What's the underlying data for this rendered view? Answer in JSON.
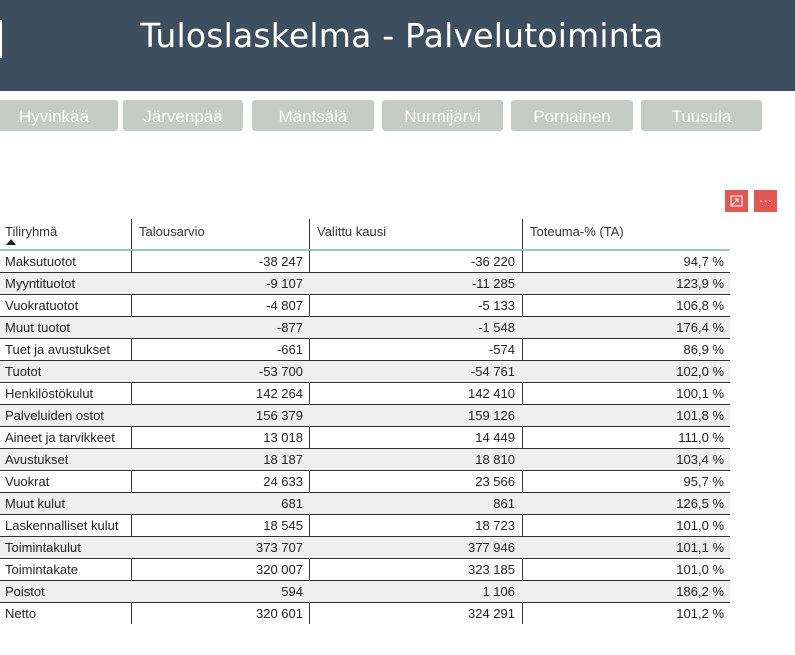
{
  "header": {
    "title": "Tuloslaskelma - Palvelutoiminta"
  },
  "filters": [
    {
      "label": "Hyvinkää"
    },
    {
      "label": "Järvenpää"
    },
    {
      "label": "Mäntsälä"
    },
    {
      "label": "Nurmijärvi"
    },
    {
      "label": "Pornainen"
    },
    {
      "label": "Tuusula"
    }
  ],
  "visual_actions": {
    "focus_icon": "focus-mode-icon",
    "more_icon": "more-options-icon",
    "more_label": "···"
  },
  "table": {
    "columns": [
      "Tiliryhmä",
      "Talousarvio",
      "Valittu kausi",
      "Toteuma-% (TA)"
    ],
    "sort_column": "Tiliryhmä",
    "rows": [
      {
        "name": "Maksutuotot",
        "budget": "-38 247",
        "period": "-36 220",
        "pct": "94,7 %"
      },
      {
        "name": "Myyntituotot",
        "budget": "-9 107",
        "period": "-11 285",
        "pct": "123,9 %"
      },
      {
        "name": "Vuokratuotot",
        "budget": "-4 807",
        "period": "-5 133",
        "pct": "106,8 %"
      },
      {
        "name": "Muut tuotot",
        "budget": "-877",
        "period": "-1 548",
        "pct": "176,4 %"
      },
      {
        "name": "Tuet ja avustukset",
        "budget": "-661",
        "period": "-574",
        "pct": "86,9 %"
      },
      {
        "name": "Tuotot",
        "budget": "-53 700",
        "period": "-54 761",
        "pct": "102,0 %"
      },
      {
        "name": "Henkilöstökulut",
        "budget": "142 264",
        "period": "142 410",
        "pct": "100,1 %"
      },
      {
        "name": "Palveluiden ostot",
        "budget": "156 379",
        "period": "159 126",
        "pct": "101,8 %"
      },
      {
        "name": "Aineet ja tarvikkeet",
        "budget": "13 018",
        "period": "14 449",
        "pct": "111,0 %"
      },
      {
        "name": "Avustukset",
        "budget": "18 187",
        "period": "18 810",
        "pct": "103,4 %"
      },
      {
        "name": "Vuokrat",
        "budget": "24 633",
        "period": "23 566",
        "pct": "95,7 %"
      },
      {
        "name": "Muut kulut",
        "budget": "681",
        "period": "861",
        "pct": "126,5 %"
      },
      {
        "name": "Laskennalliset kulut",
        "budget": "18 545",
        "period": "18 723",
        "pct": "101,0 %"
      },
      {
        "name": "Toimintakulut",
        "budget": "373 707",
        "period": "377 946",
        "pct": "101,1 %"
      },
      {
        "name": "Toimintakate",
        "budget": "320 007",
        "period": "323 185",
        "pct": "101,0 %"
      },
      {
        "name": "Poistot",
        "budget": "594",
        "period": "1 106",
        "pct": "186,2 %"
      },
      {
        "name": "Netto",
        "budget": "320 601",
        "period": "324 291",
        "pct": "101,2 %"
      }
    ]
  }
}
